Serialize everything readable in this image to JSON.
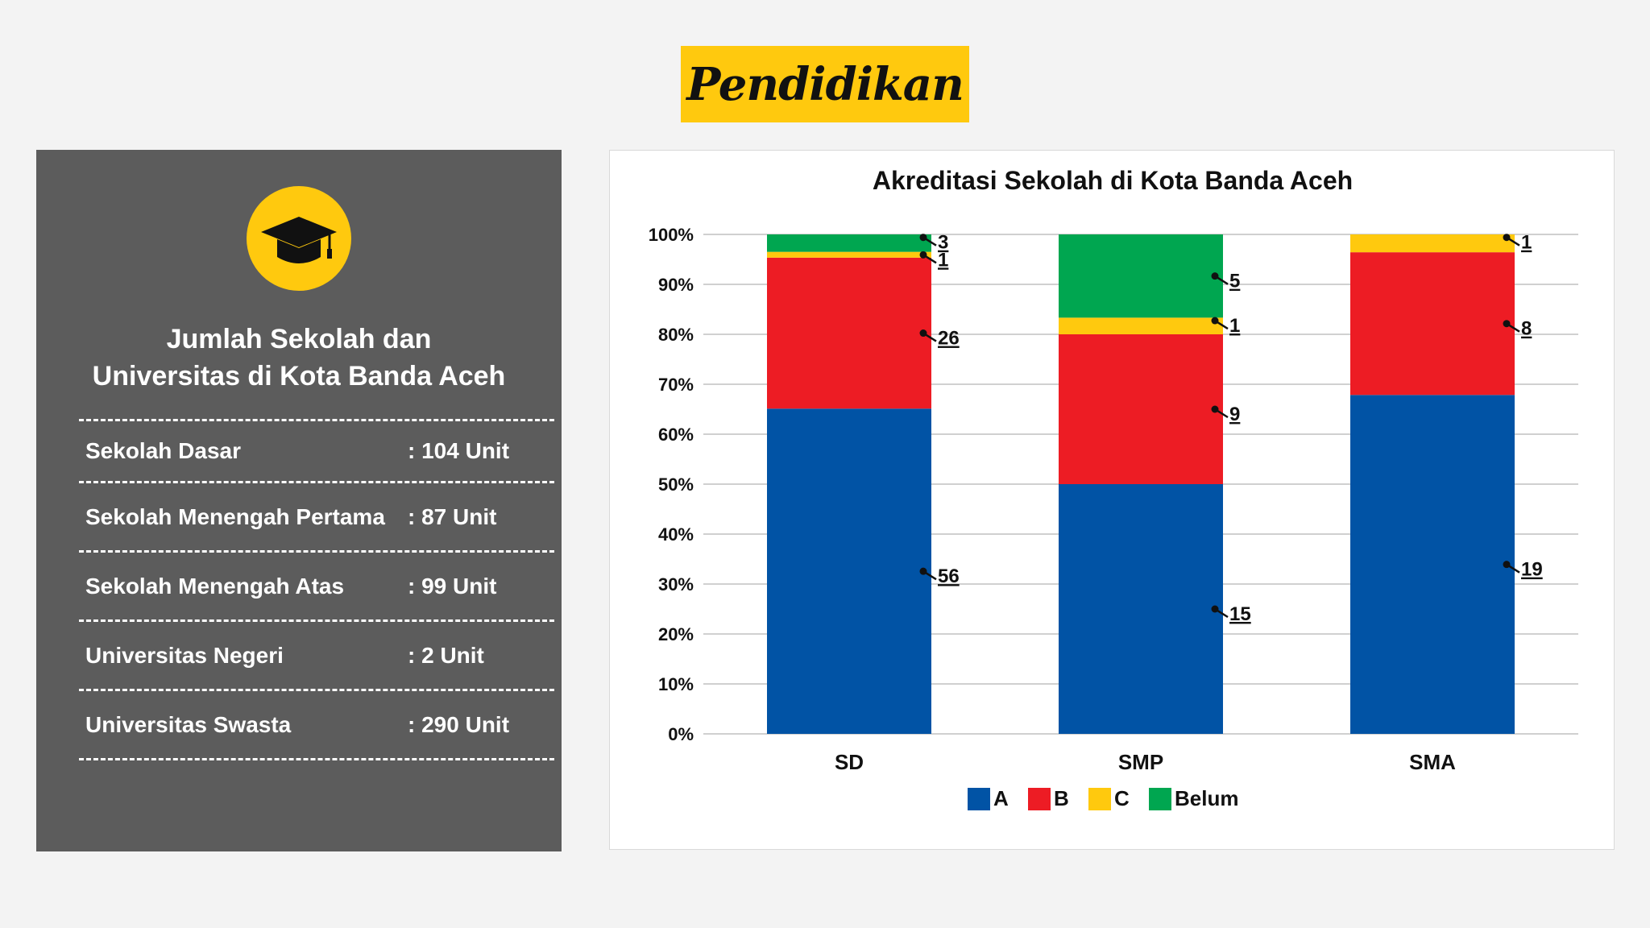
{
  "banner": {
    "title": "Pendidikan"
  },
  "info_panel": {
    "icon": "graduation-cap-icon",
    "title_line1": "Jumlah Sekolah dan",
    "title_line2": "Universitas di Kota Banda Aceh",
    "stats": [
      {
        "label": "Sekolah Dasar",
        "value": ": 104 Unit"
      },
      {
        "label": "Sekolah Menengah Pertama",
        "value": ": 87 Unit"
      },
      {
        "label": "Sekolah Menengah Atas",
        "value": ": 99 Unit"
      },
      {
        "label": "Universitas Negeri",
        "value": ": 2 Unit"
      },
      {
        "label": "Universitas Swasta",
        "value": ": 290 Unit"
      }
    ]
  },
  "colors": {
    "background": "#f3f3f3",
    "accent": "#ffc90e",
    "panel": "#5c5c5c"
  },
  "chart_data": {
    "type": "bar",
    "stacked": "percent",
    "title": "Akreditasi Sekolah di Kota Banda Aceh",
    "categories": [
      "SD",
      "SMP",
      "SMA"
    ],
    "series": [
      {
        "name": "A",
        "color": "#0153a5",
        "values": [
          56,
          15,
          19
        ]
      },
      {
        "name": "B",
        "color": "#ed1c24",
        "values": [
          26,
          9,
          8
        ]
      },
      {
        "name": "C",
        "color": "#ffc90e",
        "values": [
          1,
          1,
          1
        ]
      },
      {
        "name": "Belum",
        "color": "#00a650",
        "values": [
          3,
          5,
          0
        ]
      }
    ],
    "ylim": [
      0,
      100
    ],
    "yticks": [
      "0%",
      "10%",
      "20%",
      "30%",
      "40%",
      "50%",
      "60%",
      "70%",
      "80%",
      "90%",
      "100%"
    ],
    "grid": true,
    "legend": "bottom"
  }
}
